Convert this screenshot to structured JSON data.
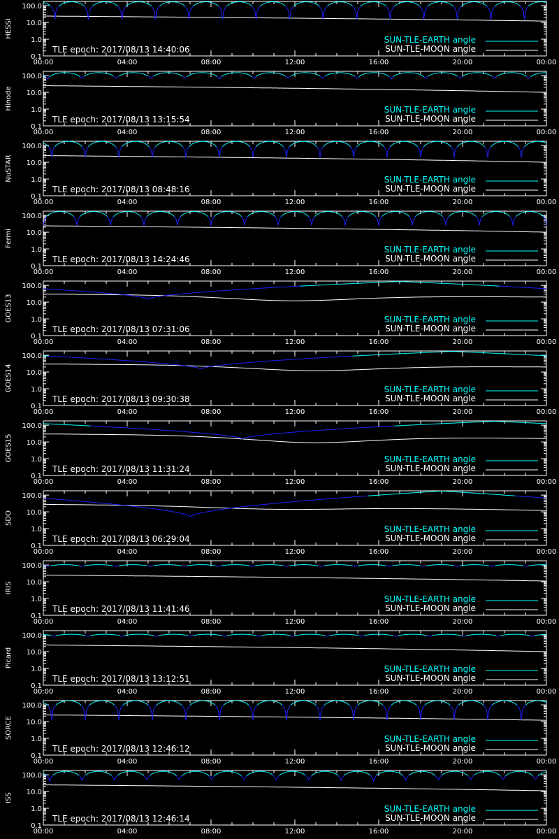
{
  "colors": {
    "background": "#000000",
    "axis": "#ffffff",
    "earth_angle": "#00ffff",
    "earth_angle_low": "#2020ff",
    "moon_angle": "#ffffff"
  },
  "chart_data": {
    "type": "line",
    "xlim_hours": [
      0,
      24
    ],
    "x_tick_labels": [
      "00:00",
      "04:00",
      "08:00",
      "12:00",
      "16:00",
      "20:00",
      "00:00"
    ],
    "y_scale": "log",
    "ylim": [
      0.1,
      180
    ],
    "y_tick_labels": [
      "100.0",
      "10.0",
      "1.0",
      "0.1"
    ],
    "legend": {
      "placement": "bottom-right",
      "entries": [
        "SUN-TLE-EARTH angle",
        "SUN-TLE-MOON angle"
      ]
    },
    "panels": [
      {
        "satellite": "HESSI",
        "epoch": "TLE epoch: 2017/08/13 14:40:06",
        "earth": {
          "kind": "periodic",
          "period_h": 1.6,
          "phase_h": 0.55,
          "max_deg": 170,
          "min_deg": 15
        },
        "moon": {
          "start_deg": 24,
          "end_deg": 12
        }
      },
      {
        "satellite": "Hinode",
        "epoch": "TLE epoch: 2017/08/13 13:15:54",
        "earth": {
          "kind": "periodic",
          "period_h": 1.64,
          "phase_h": 0.2,
          "max_deg": 150,
          "min_deg": 60
        },
        "moon": {
          "start_deg": 25,
          "end_deg": 10
        }
      },
      {
        "satellite": "NuSTAR",
        "epoch": "TLE epoch: 2017/08/13 08:48:16",
        "earth": {
          "kind": "periodic",
          "period_h": 1.6,
          "phase_h": 0.4,
          "max_deg": 175,
          "min_deg": 20
        },
        "moon": {
          "start_deg": 25,
          "end_deg": 10
        }
      },
      {
        "satellite": "Fermi",
        "epoch": "TLE epoch: 2017/08/13 14:24:46",
        "earth": {
          "kind": "periodic",
          "period_h": 1.6,
          "phase_h": 0.0,
          "max_deg": 170,
          "min_deg": 25
        },
        "moon": {
          "start_deg": 24,
          "end_deg": 10
        }
      },
      {
        "satellite": "GOES13",
        "epoch": "TLE epoch: 2017/08/13 07:31:06",
        "earth": {
          "kind": "geo",
          "min_t_h": 5.0,
          "min_deg": 15,
          "max_deg": 170
        },
        "moon": {
          "start_deg": 30,
          "end_deg": 20,
          "dip_t_h": 12,
          "dip_deg": 12
        }
      },
      {
        "satellite": "GOES14",
        "epoch": "TLE epoch: 2017/08/13 09:30:38",
        "earth": {
          "kind": "geo",
          "min_t_h": 7.5,
          "min_deg": 15,
          "max_deg": 170
        },
        "moon": {
          "start_deg": 30,
          "end_deg": 20,
          "dip_t_h": 13,
          "dip_deg": 12
        }
      },
      {
        "satellite": "GOES15",
        "epoch": "TLE epoch: 2017/08/13 11:31:24",
        "earth": {
          "kind": "geo",
          "min_t_h": 9.5,
          "min_deg": 15,
          "max_deg": 170
        },
        "moon": {
          "start_deg": 30,
          "end_deg": 16,
          "dip_t_h": 13,
          "dip_deg": 9
        }
      },
      {
        "satellite": "SDO",
        "epoch": "TLE epoch: 2017/08/13 06:29:04",
        "earth": {
          "kind": "geo",
          "min_t_h": 7.0,
          "min_deg": 5,
          "max_deg": 175
        },
        "moon": {
          "start_deg": 28,
          "end_deg": 12,
          "dip_t_h": 12,
          "dip_deg": 14
        }
      },
      {
        "satellite": "IRIS",
        "epoch": "TLE epoch: 2017/08/13 11:41:46",
        "earth": {
          "kind": "periodic",
          "period_h": 1.63,
          "phase_h": 0.2,
          "max_deg": 105,
          "min_deg": 80
        },
        "moon": {
          "start_deg": 25,
          "end_deg": 11
        }
      },
      {
        "satellite": "Picard",
        "epoch": "TLE epoch: 2017/08/13 13:12:51",
        "earth": {
          "kind": "periodic",
          "period_h": 1.63,
          "phase_h": 0.5,
          "max_deg": 110,
          "min_deg": 80
        },
        "moon": {
          "start_deg": 25,
          "end_deg": 10
        }
      },
      {
        "satellite": "SORCE",
        "epoch": "TLE epoch: 2017/08/13 12:46:12",
        "earth": {
          "kind": "periodic",
          "period_h": 1.6,
          "phase_h": 0.4,
          "max_deg": 175,
          "min_deg": 12
        },
        "moon": {
          "start_deg": 25,
          "end_deg": 12
        }
      },
      {
        "satellite": "ISS",
        "epoch": "TLE epoch: 2017/08/13 12:46:14",
        "earth": {
          "kind": "periodic",
          "period_h": 1.545,
          "phase_h": 0.3,
          "max_deg": 160,
          "min_deg": 40
        },
        "moon": {
          "start_deg": 25,
          "end_deg": 11
        }
      }
    ]
  }
}
